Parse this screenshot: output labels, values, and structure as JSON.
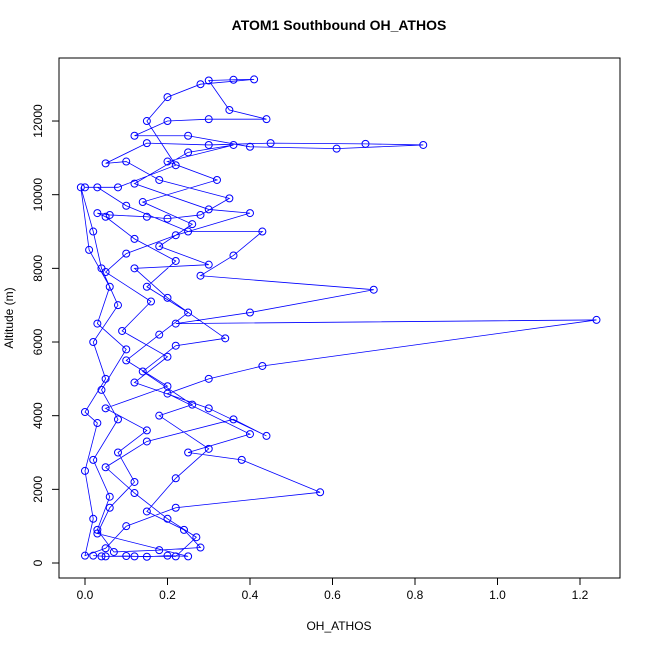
{
  "chart_data": {
    "type": "line",
    "title": "ATOM1 Southbound OH_ATHOS",
    "x_label": "OH_ATHOS",
    "y_label": "Altitude (m)",
    "xlim": [
      -0.063,
      1.297
    ],
    "ylim": [
      -407,
      13711
    ],
    "xticks": [
      {
        "value": 0,
        "label": "0.0"
      },
      {
        "value": 0.2,
        "label": "0.2"
      },
      {
        "value": 0.4,
        "label": "0.4"
      },
      {
        "value": 0.6,
        "label": "0.6"
      },
      {
        "value": 0.8,
        "label": "0.8"
      },
      {
        "value": 1,
        "label": "1.0"
      },
      {
        "value": 1.2,
        "label": "1.2"
      }
    ],
    "yticks": [
      0,
      2000,
      4000,
      6000,
      8000,
      10000,
      12000
    ],
    "grid": false,
    "series": [
      {
        "color": "#0000ff",
        "x": [
          0.02,
          0.05,
          0.1,
          0.15,
          0.2,
          0.25,
          0.03,
          0.06,
          0.12,
          0.08,
          0.15,
          0.05,
          0.2,
          0.1,
          0.18,
          0.25,
          0.15,
          0.22,
          0.12,
          0.05,
          0.03,
          0.06,
          0.15,
          0.2,
          0.28,
          0.35,
          0.18,
          0.1,
          0.05,
          0.15,
          0.3,
          0.45,
          0.68,
          0.82,
          0.61,
          0.4,
          0.25,
          0.12,
          0.2,
          0.3,
          0.44,
          0.35,
          0.3,
          0.36,
          0.41,
          0.28,
          0.2,
          0.15,
          0.22,
          0.08,
          0.0,
          0.03,
          0.1,
          0.25,
          0.43,
          0.36,
          0.28,
          0.7,
          0.4,
          0.22,
          1.24,
          0.43,
          0.3,
          0.2,
          0.4,
          0.25,
          0.38,
          0.57,
          0.22,
          0.1,
          0.05,
          0.0,
          0.02,
          0.0,
          0.03,
          0.0,
          0.05,
          0.02,
          0.08,
          0.04,
          0.02,
          -0.01,
          0.01,
          0.06,
          0.03,
          0.1,
          0.04,
          0.08,
          0.02,
          0.06,
          0.03,
          0.07,
          0.18,
          0.28,
          0.24,
          0.15,
          0.22,
          0.3,
          0.18,
          0.26,
          0.14,
          0.22,
          0.34,
          0.2,
          0.12,
          0.3,
          0.18,
          0.26,
          0.14,
          0.32,
          0.2,
          0.36,
          0.25,
          0.12,
          0.3,
          0.4,
          0.22,
          0.1,
          0.05,
          0.16,
          0.09,
          0.2,
          0.12,
          0.3,
          0.44,
          0.36,
          0.15,
          0.05,
          0.12,
          0.2,
          0.27,
          0.22,
          0.12,
          0.04
        ],
        "values": [
          200,
          180,
          190,
          170,
          200,
          180,
          800,
          1500,
          2200,
          3000,
          3600,
          4200,
          4800,
          5500,
          6200,
          6800,
          7500,
          8200,
          8800,
          9400,
          9500,
          9450,
          9400,
          9350,
          9450,
          9900,
          10400,
          10900,
          10850,
          11400,
          11350,
          11400,
          11380,
          11350,
          11250,
          11300,
          11600,
          11600,
          12000,
          12050,
          12050,
          12300,
          13100,
          13120,
          13130,
          13000,
          12650,
          12000,
          10800,
          10200,
          10200,
          10200,
          9700,
          9000,
          9000,
          8350,
          7800,
          7420,
          6800,
          6500,
          6600,
          5350,
          5000,
          4600,
          3500,
          3000,
          2800,
          1920,
          1500,
          1000,
          400,
          200,
          1200,
          2500,
          3800,
          4100,
          5000,
          6000,
          7000,
          8000,
          9000,
          10200,
          8500,
          7500,
          6500,
          5800,
          4700,
          3900,
          2800,
          1800,
          900,
          300,
          350,
          420,
          900,
          1400,
          2300,
          3100,
          4000,
          4300,
          5200,
          5900,
          6100,
          7200,
          8000,
          8100,
          8600,
          9200,
          9800,
          10400,
          10900,
          11350,
          11150,
          10300,
          9600,
          9500,
          8900,
          8400,
          7900,
          7100,
          6300,
          5600,
          4900,
          4200,
          3450,
          3900,
          3300,
          2600,
          1900,
          1200,
          700,
          180,
          180,
          180
        ]
      }
    ]
  }
}
